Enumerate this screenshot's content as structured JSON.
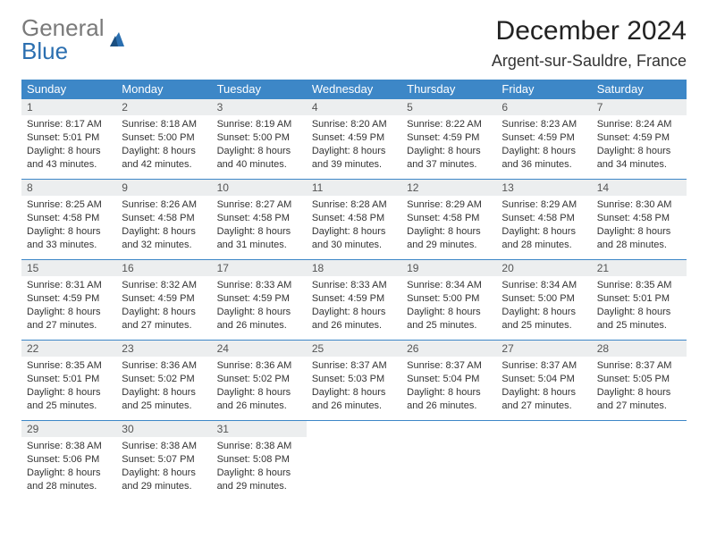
{
  "brand": {
    "part1": "General",
    "part2": "Blue"
  },
  "title": "December 2024",
  "location": "Argent-sur-Sauldre, France",
  "colors": {
    "header_bg": "#3d87c7",
    "header_text": "#ffffff",
    "daynum_bg": "#eceeef",
    "rule": "#3d87c7",
    "logo_gray": "#7a7a7a",
    "logo_blue": "#2b6fb0"
  },
  "weekdays": [
    "Sunday",
    "Monday",
    "Tuesday",
    "Wednesday",
    "Thursday",
    "Friday",
    "Saturday"
  ],
  "weeks": [
    [
      {
        "n": "1",
        "sr": "Sunrise: 8:17 AM",
        "ss": "Sunset: 5:01 PM",
        "d1": "Daylight: 8 hours",
        "d2": "and 43 minutes."
      },
      {
        "n": "2",
        "sr": "Sunrise: 8:18 AM",
        "ss": "Sunset: 5:00 PM",
        "d1": "Daylight: 8 hours",
        "d2": "and 42 minutes."
      },
      {
        "n": "3",
        "sr": "Sunrise: 8:19 AM",
        "ss": "Sunset: 5:00 PM",
        "d1": "Daylight: 8 hours",
        "d2": "and 40 minutes."
      },
      {
        "n": "4",
        "sr": "Sunrise: 8:20 AM",
        "ss": "Sunset: 4:59 PM",
        "d1": "Daylight: 8 hours",
        "d2": "and 39 minutes."
      },
      {
        "n": "5",
        "sr": "Sunrise: 8:22 AM",
        "ss": "Sunset: 4:59 PM",
        "d1": "Daylight: 8 hours",
        "d2": "and 37 minutes."
      },
      {
        "n": "6",
        "sr": "Sunrise: 8:23 AM",
        "ss": "Sunset: 4:59 PM",
        "d1": "Daylight: 8 hours",
        "d2": "and 36 minutes."
      },
      {
        "n": "7",
        "sr": "Sunrise: 8:24 AM",
        "ss": "Sunset: 4:59 PM",
        "d1": "Daylight: 8 hours",
        "d2": "and 34 minutes."
      }
    ],
    [
      {
        "n": "8",
        "sr": "Sunrise: 8:25 AM",
        "ss": "Sunset: 4:58 PM",
        "d1": "Daylight: 8 hours",
        "d2": "and 33 minutes."
      },
      {
        "n": "9",
        "sr": "Sunrise: 8:26 AM",
        "ss": "Sunset: 4:58 PM",
        "d1": "Daylight: 8 hours",
        "d2": "and 32 minutes."
      },
      {
        "n": "10",
        "sr": "Sunrise: 8:27 AM",
        "ss": "Sunset: 4:58 PM",
        "d1": "Daylight: 8 hours",
        "d2": "and 31 minutes."
      },
      {
        "n": "11",
        "sr": "Sunrise: 8:28 AM",
        "ss": "Sunset: 4:58 PM",
        "d1": "Daylight: 8 hours",
        "d2": "and 30 minutes."
      },
      {
        "n": "12",
        "sr": "Sunrise: 8:29 AM",
        "ss": "Sunset: 4:58 PM",
        "d1": "Daylight: 8 hours",
        "d2": "and 29 minutes."
      },
      {
        "n": "13",
        "sr": "Sunrise: 8:29 AM",
        "ss": "Sunset: 4:58 PM",
        "d1": "Daylight: 8 hours",
        "d2": "and 28 minutes."
      },
      {
        "n": "14",
        "sr": "Sunrise: 8:30 AM",
        "ss": "Sunset: 4:58 PM",
        "d1": "Daylight: 8 hours",
        "d2": "and 28 minutes."
      }
    ],
    [
      {
        "n": "15",
        "sr": "Sunrise: 8:31 AM",
        "ss": "Sunset: 4:59 PM",
        "d1": "Daylight: 8 hours",
        "d2": "and 27 minutes."
      },
      {
        "n": "16",
        "sr": "Sunrise: 8:32 AM",
        "ss": "Sunset: 4:59 PM",
        "d1": "Daylight: 8 hours",
        "d2": "and 27 minutes."
      },
      {
        "n": "17",
        "sr": "Sunrise: 8:33 AM",
        "ss": "Sunset: 4:59 PM",
        "d1": "Daylight: 8 hours",
        "d2": "and 26 minutes."
      },
      {
        "n": "18",
        "sr": "Sunrise: 8:33 AM",
        "ss": "Sunset: 4:59 PM",
        "d1": "Daylight: 8 hours",
        "d2": "and 26 minutes."
      },
      {
        "n": "19",
        "sr": "Sunrise: 8:34 AM",
        "ss": "Sunset: 5:00 PM",
        "d1": "Daylight: 8 hours",
        "d2": "and 25 minutes."
      },
      {
        "n": "20",
        "sr": "Sunrise: 8:34 AM",
        "ss": "Sunset: 5:00 PM",
        "d1": "Daylight: 8 hours",
        "d2": "and 25 minutes."
      },
      {
        "n": "21",
        "sr": "Sunrise: 8:35 AM",
        "ss": "Sunset: 5:01 PM",
        "d1": "Daylight: 8 hours",
        "d2": "and 25 minutes."
      }
    ],
    [
      {
        "n": "22",
        "sr": "Sunrise: 8:35 AM",
        "ss": "Sunset: 5:01 PM",
        "d1": "Daylight: 8 hours",
        "d2": "and 25 minutes."
      },
      {
        "n": "23",
        "sr": "Sunrise: 8:36 AM",
        "ss": "Sunset: 5:02 PM",
        "d1": "Daylight: 8 hours",
        "d2": "and 25 minutes."
      },
      {
        "n": "24",
        "sr": "Sunrise: 8:36 AM",
        "ss": "Sunset: 5:02 PM",
        "d1": "Daylight: 8 hours",
        "d2": "and 26 minutes."
      },
      {
        "n": "25",
        "sr": "Sunrise: 8:37 AM",
        "ss": "Sunset: 5:03 PM",
        "d1": "Daylight: 8 hours",
        "d2": "and 26 minutes."
      },
      {
        "n": "26",
        "sr": "Sunrise: 8:37 AM",
        "ss": "Sunset: 5:04 PM",
        "d1": "Daylight: 8 hours",
        "d2": "and 26 minutes."
      },
      {
        "n": "27",
        "sr": "Sunrise: 8:37 AM",
        "ss": "Sunset: 5:04 PM",
        "d1": "Daylight: 8 hours",
        "d2": "and 27 minutes."
      },
      {
        "n": "28",
        "sr": "Sunrise: 8:37 AM",
        "ss": "Sunset: 5:05 PM",
        "d1": "Daylight: 8 hours",
        "d2": "and 27 minutes."
      }
    ],
    [
      {
        "n": "29",
        "sr": "Sunrise: 8:38 AM",
        "ss": "Sunset: 5:06 PM",
        "d1": "Daylight: 8 hours",
        "d2": "and 28 minutes."
      },
      {
        "n": "30",
        "sr": "Sunrise: 8:38 AM",
        "ss": "Sunset: 5:07 PM",
        "d1": "Daylight: 8 hours",
        "d2": "and 29 minutes."
      },
      {
        "n": "31",
        "sr": "Sunrise: 8:38 AM",
        "ss": "Sunset: 5:08 PM",
        "d1": "Daylight: 8 hours",
        "d2": "and 29 minutes."
      },
      {
        "empty": true
      },
      {
        "empty": true
      },
      {
        "empty": true
      },
      {
        "empty": true
      }
    ]
  ]
}
